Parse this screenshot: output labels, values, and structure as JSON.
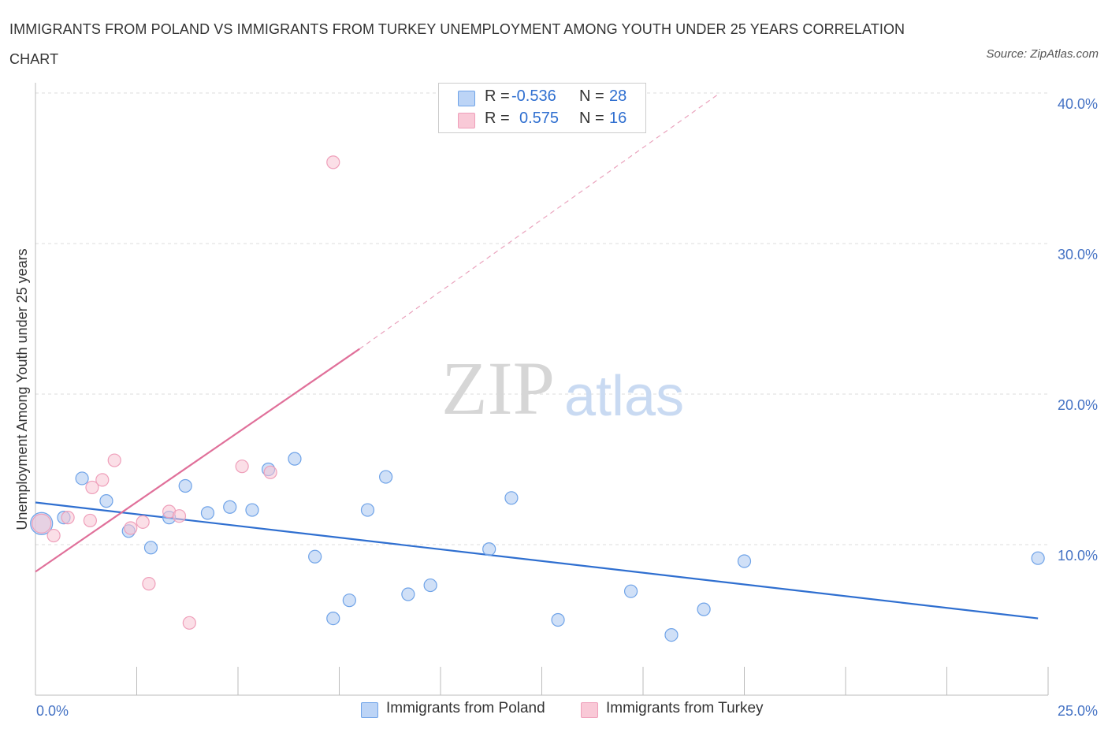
{
  "header": {
    "title": "IMMIGRANTS FROM POLAND VS IMMIGRANTS FROM TURKEY UNEMPLOYMENT AMONG YOUTH UNDER 25 YEARS CORRELATION CHART",
    "source": "Source: ZipAtlas.com"
  },
  "legend": {
    "poland": {
      "r_label": "R =",
      "r_value": "-0.536",
      "n_label": "N =",
      "n_value": "28"
    },
    "turkey": {
      "r_label": "R =",
      "r_value": "0.575",
      "n_label": "N =",
      "n_value": "16"
    }
  },
  "watermark": {
    "zip": "ZIP",
    "atlas": "atlas"
  },
  "chart_data": {
    "type": "scatter",
    "title": "IMMIGRANTS FROM POLAND VS IMMIGRANTS FROM TURKEY UNEMPLOYMENT AMONG YOUTH UNDER 25 YEARS CORRELATION CHART",
    "xlabel": "",
    "ylabel": "Unemployment Among Youth under 25 years",
    "xlim": [
      0,
      25
    ],
    "ylim": [
      0,
      40
    ],
    "x_tick_labels": [
      "0.0%",
      "25.0%"
    ],
    "y_ticks": [
      10,
      20,
      30,
      40
    ],
    "y_tick_labels": [
      "10.0%",
      "20.0%",
      "30.0%",
      "40.0%"
    ],
    "grid": true,
    "colors": {
      "poland": "#6fa3e8",
      "turkey": "#ef9fba",
      "poland_line": "#2f6fd0",
      "turkey_line": "#e0709a"
    },
    "series": [
      {
        "name": "Immigrants from Poland",
        "points": [
          [
            0.15,
            11.4
          ],
          [
            0.7,
            11.8
          ],
          [
            1.15,
            14.4
          ],
          [
            1.75,
            12.9
          ],
          [
            2.3,
            10.9
          ],
          [
            2.85,
            9.8
          ],
          [
            3.3,
            11.8
          ],
          [
            3.7,
            13.9
          ],
          [
            4.25,
            12.1
          ],
          [
            4.8,
            12.5
          ],
          [
            5.35,
            12.3
          ],
          [
            5.75,
            15.0
          ],
          [
            6.4,
            15.7
          ],
          [
            6.9,
            9.2
          ],
          [
            7.35,
            5.1
          ],
          [
            7.75,
            6.3
          ],
          [
            8.2,
            12.3
          ],
          [
            8.65,
            14.5
          ],
          [
            9.2,
            6.7
          ],
          [
            9.75,
            7.3
          ],
          [
            11.2,
            9.7
          ],
          [
            11.75,
            13.1
          ],
          [
            12.9,
            5.0
          ],
          [
            14.7,
            6.9
          ],
          [
            15.7,
            4.0
          ],
          [
            16.5,
            5.7
          ],
          [
            17.5,
            8.9
          ],
          [
            24.75,
            9.1
          ]
        ],
        "trend": {
          "x": [
            0,
            24.75
          ],
          "y": [
            12.8,
            5.1
          ]
        }
      },
      {
        "name": "Immigrants from Turkey",
        "points": [
          [
            0.15,
            11.4
          ],
          [
            0.45,
            10.6
          ],
          [
            0.8,
            11.8
          ],
          [
            1.4,
            13.8
          ],
          [
            1.35,
            11.6
          ],
          [
            1.65,
            14.3
          ],
          [
            1.95,
            15.6
          ],
          [
            2.35,
            11.1
          ],
          [
            2.65,
            11.5
          ],
          [
            2.8,
            7.4
          ],
          [
            3.3,
            12.2
          ],
          [
            3.55,
            11.9
          ],
          [
            3.8,
            4.8
          ],
          [
            5.1,
            15.2
          ],
          [
            5.8,
            14.8
          ],
          [
            7.35,
            35.4
          ]
        ],
        "trend": {
          "x": [
            0,
            8.0
          ],
          "y": [
            8.2,
            23.0
          ]
        },
        "trend_extension": {
          "x": [
            8.0,
            16.9
          ],
          "y": [
            23.0,
            40.0
          ]
        }
      }
    ]
  },
  "bottom_legend": {
    "poland_label": "Immigrants from Poland",
    "turkey_label": "Immigrants from Turkey"
  }
}
